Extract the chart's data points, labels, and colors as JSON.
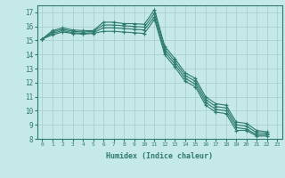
{
  "title": "",
  "xlabel": "Humidex (Indice chaleur)",
  "ylabel": "",
  "bg_color": "#c5e8e8",
  "grid_color": "#a8cccc",
  "line_color": "#2d7a6e",
  "xlim": [
    -0.5,
    23.5
  ],
  "ylim": [
    8,
    17.5
  ],
  "yticks": [
    8,
    9,
    10,
    11,
    12,
    13,
    14,
    15,
    16,
    17
  ],
  "xticks": [
    0,
    1,
    2,
    3,
    4,
    5,
    6,
    7,
    8,
    9,
    10,
    11,
    12,
    13,
    14,
    15,
    16,
    17,
    18,
    19,
    20,
    21,
    22,
    23
  ],
  "lines": [
    [
      15.1,
      15.7,
      15.9,
      15.75,
      15.7,
      15.7,
      16.3,
      16.3,
      16.2,
      16.2,
      16.15,
      17.2,
      14.6,
      13.7,
      12.7,
      12.3,
      11.0,
      10.5,
      10.4,
      9.2,
      9.1,
      8.6,
      8.5
    ],
    [
      15.1,
      15.6,
      15.8,
      15.65,
      15.6,
      15.65,
      16.1,
      16.1,
      16.05,
      16.0,
      15.95,
      16.95,
      14.4,
      13.5,
      12.5,
      12.1,
      10.8,
      10.3,
      10.2,
      9.0,
      8.9,
      8.45,
      8.4
    ],
    [
      15.1,
      15.5,
      15.7,
      15.55,
      15.5,
      15.55,
      15.9,
      15.9,
      15.85,
      15.8,
      15.75,
      16.7,
      14.2,
      13.3,
      12.3,
      11.9,
      10.6,
      10.1,
      10.0,
      8.8,
      8.7,
      8.3,
      8.3
    ],
    [
      15.1,
      15.4,
      15.6,
      15.5,
      15.45,
      15.5,
      15.65,
      15.65,
      15.6,
      15.55,
      15.5,
      16.5,
      14.0,
      13.1,
      12.1,
      11.7,
      10.4,
      9.9,
      9.8,
      8.6,
      8.6,
      8.2,
      8.2
    ]
  ]
}
